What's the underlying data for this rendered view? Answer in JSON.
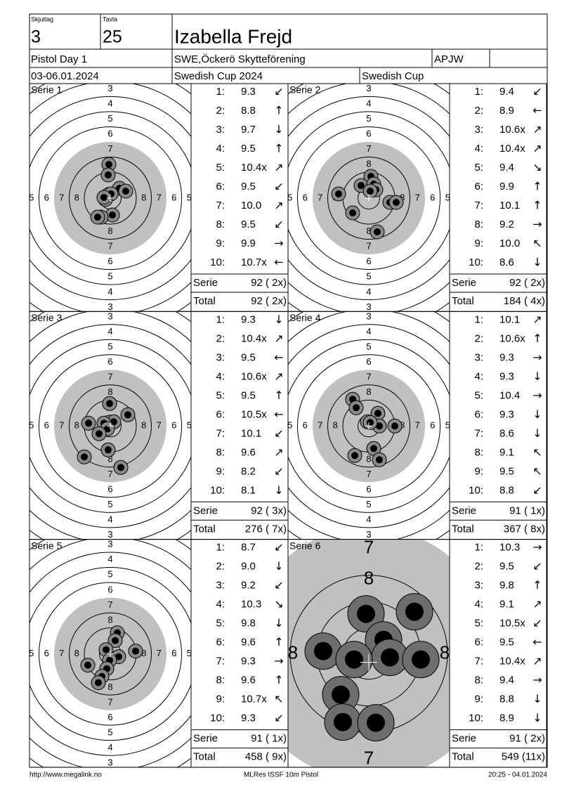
{
  "header": {
    "squad_label": "Skjutlag",
    "squad": "3",
    "target_label": "Tavla",
    "target": "25",
    "name": "Izabella Frejd",
    "event": "Pistol Day 1",
    "club": "SWE,Öckerö Skytteförening",
    "code": "APJW",
    "dates": "03-06.01.2024",
    "competition": "Swedish Cup 2024",
    "cup": "Swedish Cup"
  },
  "target": {
    "ring_labels": [
      "3",
      "4",
      "5",
      "6",
      "7",
      "8"
    ]
  },
  "shot_labels": [
    "1:",
    "2:",
    "3:",
    "4:",
    "5:",
    "6:",
    "7:",
    "8:",
    "9:",
    "10:"
  ],
  "serie_label": "Serie",
  "total_label": "Total",
  "series": [
    {
      "title": "Serie 1",
      "shots": [
        {
          "score": "9.3",
          "dir": "↙"
        },
        {
          "score": "8.8",
          "dir": "↑"
        },
        {
          "score": "9.7",
          "dir": "↓"
        },
        {
          "score": "9.5",
          "dir": "↑"
        },
        {
          "score": "10.4x",
          "dir": "↗"
        },
        {
          "score": "9.5",
          "dir": "↙"
        },
        {
          "score": "10.0",
          "dir": "↗"
        },
        {
          "score": "9.5",
          "dir": "↙"
        },
        {
          "score": "9.9",
          "dir": "→"
        },
        {
          "score": "10.7x",
          "dir": "←"
        }
      ],
      "serie": "92 ( 2x)",
      "total": "92 ( 2x)"
    },
    {
      "title": "Serie 2",
      "shots": [
        {
          "score": "9.4",
          "dir": "↙"
        },
        {
          "score": "8.9",
          "dir": "←"
        },
        {
          "score": "10.6x",
          "dir": "↗"
        },
        {
          "score": "10.4x",
          "dir": "↗"
        },
        {
          "score": "9.4",
          "dir": "↘"
        },
        {
          "score": "9.9",
          "dir": "↑"
        },
        {
          "score": "10.1",
          "dir": "↑"
        },
        {
          "score": "9.2",
          "dir": "→"
        },
        {
          "score": "10.0",
          "dir": "↖"
        },
        {
          "score": "8.6",
          "dir": "↓"
        }
      ],
      "serie": "92 ( 2x)",
      "total": "184 ( 4x)"
    },
    {
      "title": "Serie 3",
      "shots": [
        {
          "score": "9.3",
          "dir": "↓"
        },
        {
          "score": "10.4x",
          "dir": "↗"
        },
        {
          "score": "9.5",
          "dir": "←"
        },
        {
          "score": "10.6x",
          "dir": "↗"
        },
        {
          "score": "9.5",
          "dir": "↑"
        },
        {
          "score": "10.5x",
          "dir": "←"
        },
        {
          "score": "10.1",
          "dir": "↙"
        },
        {
          "score": "9.6",
          "dir": "↗"
        },
        {
          "score": "8.2",
          "dir": "↙"
        },
        {
          "score": "8.1",
          "dir": "↓"
        }
      ],
      "serie": "92 ( 3x)",
      "total": "276 ( 7x)"
    },
    {
      "title": "Serie 4",
      "shots": [
        {
          "score": "10.1",
          "dir": "↗"
        },
        {
          "score": "10.6x",
          "dir": "↑"
        },
        {
          "score": "9.3",
          "dir": "→"
        },
        {
          "score": "9.3",
          "dir": "↓"
        },
        {
          "score": "10.4",
          "dir": "→"
        },
        {
          "score": "9.3",
          "dir": "↓"
        },
        {
          "score": "8.6",
          "dir": "↓"
        },
        {
          "score": "9.1",
          "dir": "↖"
        },
        {
          "score": "9.5",
          "dir": "↖"
        },
        {
          "score": "8.8",
          "dir": "↙"
        }
      ],
      "serie": "91 ( 1x)",
      "total": "367 ( 8x)"
    },
    {
      "title": "Serie 5",
      "shots": [
        {
          "score": "8.7",
          "dir": "↙"
        },
        {
          "score": "9.0",
          "dir": "↓"
        },
        {
          "score": "9.2",
          "dir": "↙"
        },
        {
          "score": "10.3",
          "dir": "↘"
        },
        {
          "score": "9.8",
          "dir": "↓"
        },
        {
          "score": "9.6",
          "dir": "↑"
        },
        {
          "score": "9.3",
          "dir": "→"
        },
        {
          "score": "9.6",
          "dir": "↑"
        },
        {
          "score": "10.7x",
          "dir": "↖"
        },
        {
          "score": "9.3",
          "dir": "↙"
        }
      ],
      "serie": "91 ( 1x)",
      "total": "458 ( 9x)"
    },
    {
      "title": "Serie 6",
      "shots": [
        {
          "score": "10.3",
          "dir": "→"
        },
        {
          "score": "9.5",
          "dir": "↙"
        },
        {
          "score": "9.8",
          "dir": "↑"
        },
        {
          "score": "9.1",
          "dir": "↗"
        },
        {
          "score": "10.5x",
          "dir": "↙"
        },
        {
          "score": "9.5",
          "dir": "←"
        },
        {
          "score": "10.4x",
          "dir": "↗"
        },
        {
          "score": "9.4",
          "dir": "→"
        },
        {
          "score": "8.8",
          "dir": "↓"
        },
        {
          "score": "8.9",
          "dir": "↓"
        }
      ],
      "serie": "91 ( 2x)",
      "total": "549 (11x)"
    }
  ],
  "footer": {
    "url": "http://www.megalink.no",
    "software": "MLRes ISSF 10m Pistol",
    "timestamp": "20:25 - 04.01.2024"
  }
}
